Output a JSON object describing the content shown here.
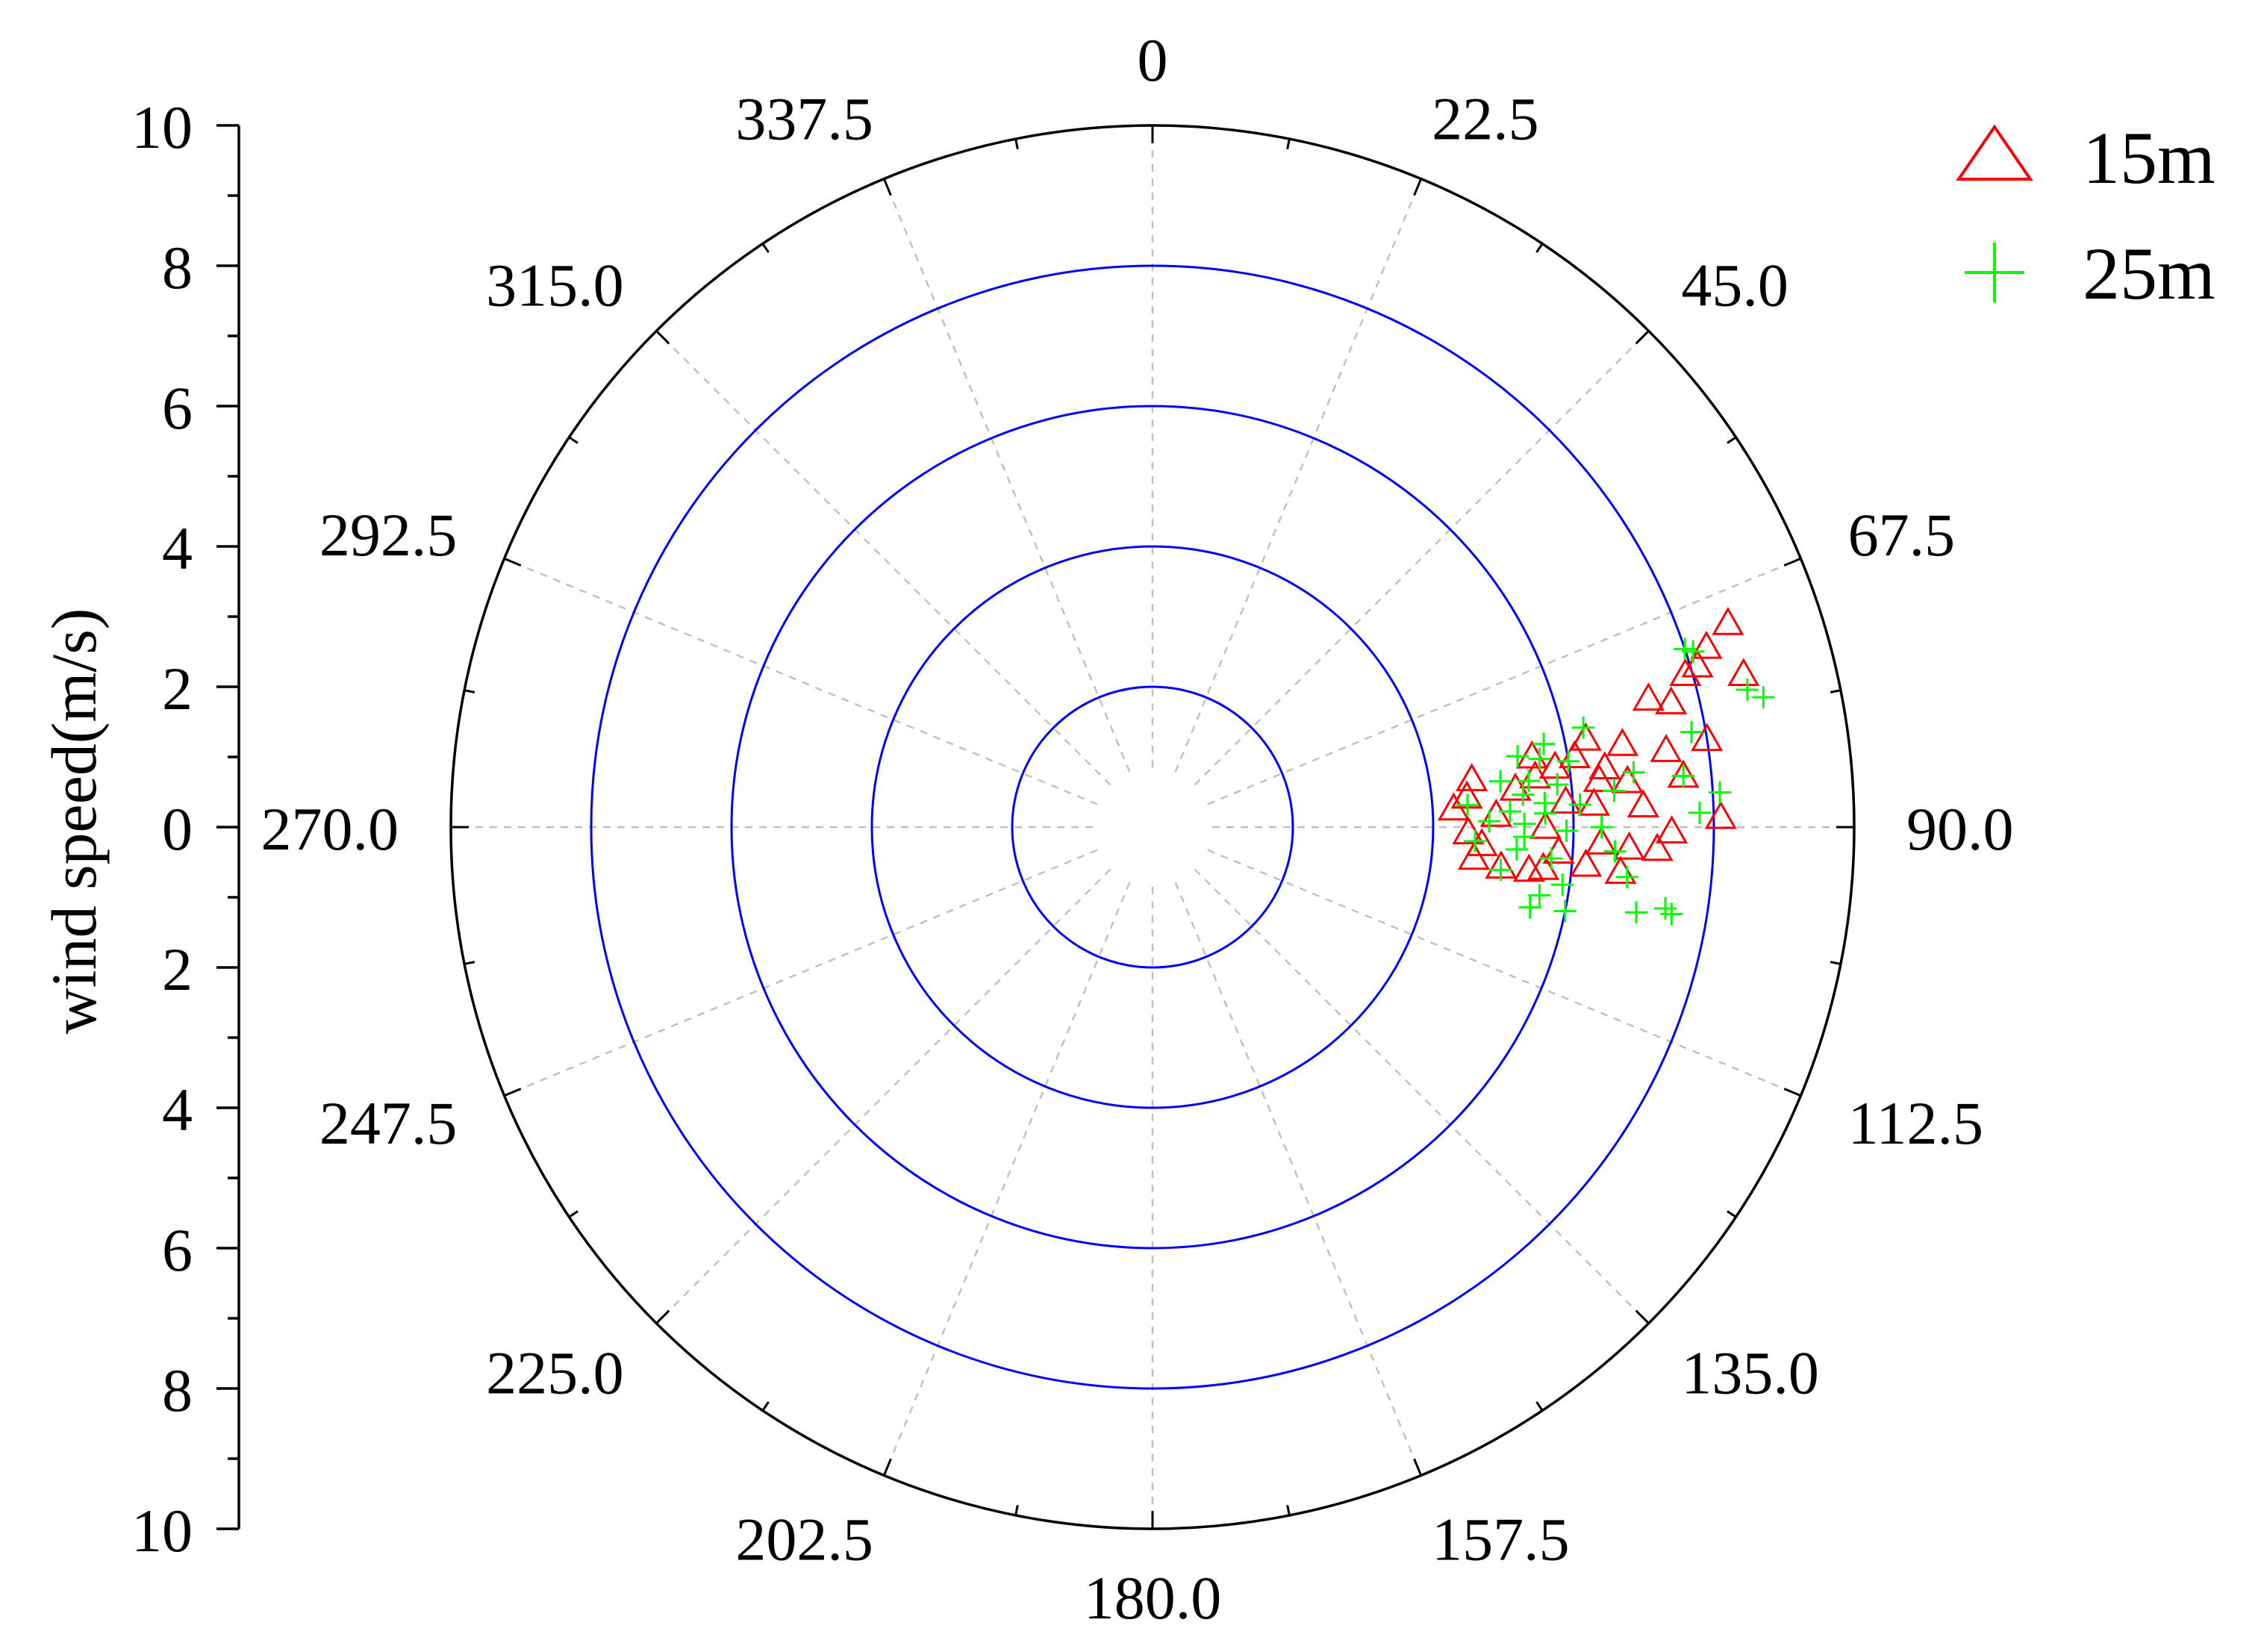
{
  "chart_data": {
    "type": "scatter",
    "coordinate_system": "polar",
    "angular_unit": "degrees",
    "angular_direction": "clockwise",
    "angular_zero": "top",
    "radial_label": "wind speed(m/s)",
    "radial_range": [
      0,
      10
    ],
    "radial_ticks": [
      0,
      2,
      4,
      6,
      8,
      10
    ],
    "radial_tick_labels": [
      "10",
      "8",
      "6",
      "4",
      "2",
      "0",
      "2",
      "4",
      "6",
      "8",
      "10"
    ],
    "angular_tick_labels": [
      "0",
      "22.5",
      "45.0",
      "67.5",
      "90.0",
      "112.5",
      "135.0",
      "157.5",
      "180.0",
      "202.5",
      "225.0",
      "247.5",
      "270.0",
      "292.5",
      "315.0",
      "337.5"
    ],
    "angular_ticks": [
      0,
      22.5,
      45,
      67.5,
      90,
      112.5,
      135,
      157.5,
      180,
      202.5,
      225,
      247.5,
      270,
      292.5,
      315,
      337.5
    ],
    "grid": {
      "circles_color": "#0000ff",
      "spokes_style": "dashed",
      "spokes_color": "#bfbfbf"
    },
    "legend_position": "top-right",
    "series": [
      {
        "name": "15m",
        "marker": "triangle",
        "color": "#ff0000",
        "points": [
          {
            "dir": 70.5,
            "speed": 8.7
          },
          {
            "dir": 72.0,
            "speed": 8.3
          },
          {
            "dir": 75.5,
            "speed": 8.7
          },
          {
            "dir": 73.5,
            "speed": 8.1
          },
          {
            "dir": 74.0,
            "speed": 7.9
          },
          {
            "dir": 76.5,
            "speed": 7.6
          },
          {
            "dir": 75.5,
            "speed": 7.3
          },
          {
            "dir": 81.0,
            "speed": 8.0
          },
          {
            "dir": 81.5,
            "speed": 7.4
          },
          {
            "dir": 84.5,
            "speed": 7.6
          },
          {
            "dir": 89.0,
            "speed": 8.1
          },
          {
            "dir": 87.5,
            "speed": 7.0
          },
          {
            "dir": 90.5,
            "speed": 7.4
          },
          {
            "dir": 92.5,
            "speed": 7.2
          },
          {
            "dir": 92.5,
            "speed": 6.8
          },
          {
            "dir": 92.0,
            "speed": 6.4
          },
          {
            "dir": 84.5,
            "speed": 6.8
          },
          {
            "dir": 84.0,
            "speed": 6.4
          },
          {
            "dir": 80.0,
            "speed": 6.8
          },
          {
            "dir": 80.5,
            "speed": 6.1
          },
          {
            "dir": 81.5,
            "speed": 5.8
          },
          {
            "dir": 79.5,
            "speed": 5.5
          },
          {
            "dir": 82.5,
            "speed": 5.5
          },
          {
            "dir": 84.0,
            "speed": 5.2
          },
          {
            "dir": 81.5,
            "speed": 4.6
          },
          {
            "dir": 84.5,
            "speed": 4.5
          },
          {
            "dir": 86.5,
            "speed": 4.3
          },
          {
            "dir": 95.5,
            "speed": 4.6
          },
          {
            "dir": 96.5,
            "speed": 5.0
          },
          {
            "dir": 96.0,
            "speed": 5.6
          },
          {
            "dir": 93.5,
            "speed": 5.8
          },
          {
            "dir": 95.0,
            "speed": 6.2
          },
          {
            "dir": 95.5,
            "speed": 6.7
          },
          {
            "dir": 96.5,
            "speed": 5.4
          },
          {
            "dir": 90.0,
            "speed": 5.6
          },
          {
            "dir": 88.0,
            "speed": 4.9
          },
          {
            "dir": 86.5,
            "speed": 5.9
          },
          {
            "dir": 87.0,
            "speed": 6.3
          },
          {
            "dir": 91.0,
            "speed": 4.5
          },
          {
            "dir": 93.0,
            "speed": 4.7
          },
          {
            "dir": 82.5,
            "speed": 6.5
          },
          {
            "dir": 78.5,
            "speed": 6.3
          }
        ]
      },
      {
        "name": "25m",
        "marker": "plus",
        "color": "#00ff00",
        "points": [
          {
            "dir": 72.0,
            "speed": 8.1
          },
          {
            "dir": 71.5,
            "speed": 8.0
          },
          {
            "dir": 78.0,
            "speed": 8.9
          },
          {
            "dir": 77.0,
            "speed": 8.7
          },
          {
            "dir": 80.0,
            "speed": 7.8
          },
          {
            "dir": 84.5,
            "speed": 7.6
          },
          {
            "dir": 86.5,
            "speed": 8.1
          },
          {
            "dir": 88.5,
            "speed": 7.8
          },
          {
            "dir": 99.0,
            "speed": 7.4
          },
          {
            "dir": 100.0,
            "speed": 7.0
          },
          {
            "dir": 99.5,
            "speed": 7.5
          },
          {
            "dir": 96.0,
            "speed": 6.8
          },
          {
            "dir": 93.0,
            "speed": 6.6
          },
          {
            "dir": 90.0,
            "speed": 6.4
          },
          {
            "dir": 85.5,
            "speed": 6.6
          },
          {
            "dir": 81.0,
            "speed": 6.0
          },
          {
            "dir": 77.0,
            "speed": 6.3
          },
          {
            "dir": 80.0,
            "speed": 5.6
          },
          {
            "dir": 79.0,
            "speed": 5.3
          },
          {
            "dir": 84.0,
            "speed": 5.8
          },
          {
            "dir": 82.5,
            "speed": 5.0
          },
          {
            "dir": 85.0,
            "speed": 5.3
          },
          {
            "dir": 86.5,
            "speed": 5.6
          },
          {
            "dir": 88.0,
            "speed": 5.6
          },
          {
            "dir": 87.5,
            "speed": 5.1
          },
          {
            "dir": 89.0,
            "speed": 4.8
          },
          {
            "dir": 86.0,
            "speed": 4.5
          },
          {
            "dir": 92.5,
            "speed": 4.6
          },
          {
            "dir": 93.5,
            "speed": 5.2
          },
          {
            "dir": 94.5,
            "speed": 5.7
          },
          {
            "dir": 97.0,
            "speed": 5.0
          },
          {
            "dir": 100.0,
            "speed": 5.6
          },
          {
            "dir": 102.0,
            "speed": 5.5
          },
          {
            "dir": 101.5,
            "speed": 6.0
          },
          {
            "dir": 98.0,
            "speed": 5.9
          },
          {
            "dir": 90.5,
            "speed": 5.9
          },
          {
            "dir": 87.0,
            "speed": 6.1
          },
          {
            "dir": 83.5,
            "speed": 6.9
          },
          {
            "dir": 83.0,
            "speed": 5.4
          },
          {
            "dir": 78.0,
            "speed": 5.7
          },
          {
            "dir": 91.5,
            "speed": 5.3
          },
          {
            "dir": 89.5,
            "speed": 5.3
          }
        ]
      }
    ]
  }
}
